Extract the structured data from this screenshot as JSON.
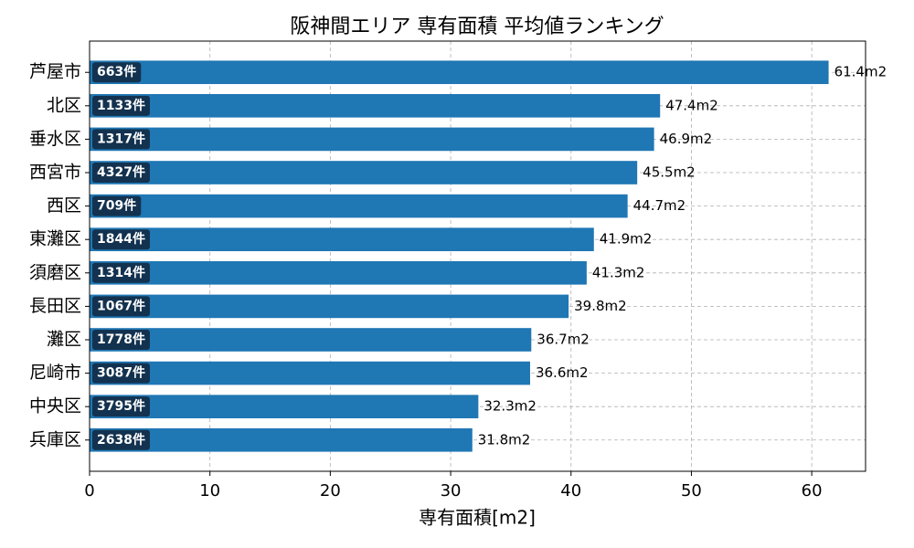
{
  "chart_data": {
    "type": "barh",
    "title": "阪神間エリア 専有面積 平均値ランキング",
    "xlabel": "専有面積[m2]",
    "categories": [
      "芦屋市",
      "北区",
      "垂水区",
      "西宮市",
      "西区",
      "東灘区",
      "須磨区",
      "長田区",
      "灘区",
      "尼崎市",
      "中央区",
      "兵庫区"
    ],
    "values": [
      61.4,
      47.4,
      46.9,
      45.5,
      44.7,
      41.9,
      41.3,
      39.8,
      36.7,
      36.6,
      32.3,
      31.8
    ],
    "value_labels": [
      "61.4m2",
      "47.4m2",
      "46.9m2",
      "45.5m2",
      "44.7m2",
      "41.9m2",
      "41.3m2",
      "39.8m2",
      "36.7m2",
      "36.6m2",
      "32.3m2",
      "31.8m2"
    ],
    "count_labels": [
      "663件",
      "1133件",
      "1317件",
      "4327件",
      "709件",
      "1844件",
      "1314件",
      "1067件",
      "1778件",
      "3087件",
      "3795件",
      "2638件"
    ],
    "color": "#1f77b4",
    "xlim": [
      0,
      64.47
    ],
    "xticks": [
      0,
      10,
      20,
      30,
      40,
      50,
      60
    ],
    "grid": true
  }
}
